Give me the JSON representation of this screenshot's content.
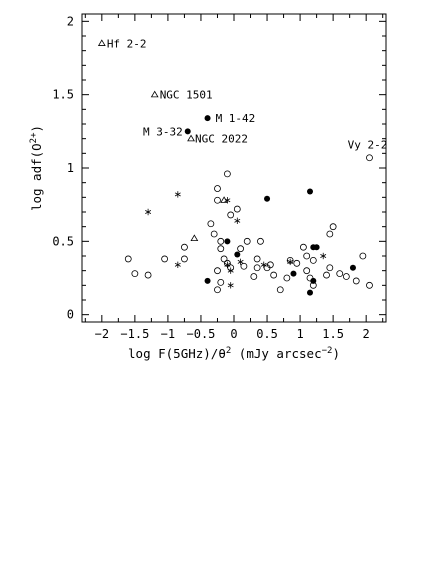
{
  "chart_data": {
    "type": "scatter",
    "xlabel_main": "log F(5GHz)/θ",
    "xlabel_sup": "2",
    "xlabel_tail": " (mJy arcsec",
    "xlabel_tail_sup": "−2",
    "xlabel_close": ")",
    "ylabel_main": "log adf(O",
    "ylabel_sup": "2+",
    "ylabel_close": ")",
    "xlim": [
      -2.3,
      2.3
    ],
    "ylim": [
      -0.05,
      2.05
    ],
    "x_ticks": [
      -2,
      -1.5,
      -1,
      -0.5,
      0,
      0.5,
      1,
      1.5,
      2
    ],
    "x_tick_labels": [
      "−2",
      "−1.5",
      "−1",
      "−0.5",
      "0",
      "0.5",
      "1",
      "1.5",
      "2"
    ],
    "y_ticks": [
      0,
      0.5,
      1,
      1.5,
      2
    ],
    "y_tick_labels": [
      "0",
      "0.5",
      "1",
      "1.5",
      "2"
    ],
    "grid": false,
    "series": [
      {
        "marker": "open-triangle",
        "points": [
          [
            -2.0,
            1.85
          ],
          [
            -1.2,
            1.5
          ],
          [
            -0.65,
            1.2
          ],
          [
            -0.15,
            0.78
          ],
          [
            -0.6,
            0.52
          ]
        ]
      },
      {
        "marker": "filled-circle",
        "points": [
          [
            -0.4,
            1.34
          ],
          [
            -0.7,
            1.25
          ],
          [
            0.5,
            0.79
          ],
          [
            1.15,
            0.84
          ],
          [
            -0.1,
            0.5
          ],
          [
            0.05,
            0.41
          ],
          [
            -0.4,
            0.23
          ],
          [
            1.2,
            0.46
          ],
          [
            1.25,
            0.46
          ],
          [
            0.9,
            0.28
          ],
          [
            1.2,
            0.23
          ],
          [
            1.15,
            0.15
          ],
          [
            1.8,
            0.32
          ]
        ]
      },
      {
        "marker": "open-circle",
        "points": [
          [
            2.05,
            1.07
          ],
          [
            -0.1,
            0.96
          ],
          [
            -0.25,
            0.86
          ],
          [
            -0.25,
            0.78
          ],
          [
            0.05,
            0.72
          ],
          [
            -0.05,
            0.68
          ],
          [
            -0.35,
            0.62
          ],
          [
            -0.3,
            0.55
          ],
          [
            -0.2,
            0.5
          ],
          [
            0.1,
            0.45
          ],
          [
            0.4,
            0.5
          ],
          [
            0.35,
            0.38
          ],
          [
            0.35,
            0.32
          ],
          [
            0.3,
            0.26
          ],
          [
            0.15,
            0.33
          ],
          [
            -0.05,
            0.32
          ],
          [
            -0.1,
            0.35
          ],
          [
            -0.15,
            0.38
          ],
          [
            -0.2,
            0.45
          ],
          [
            0.2,
            0.5
          ],
          [
            -0.25,
            0.3
          ],
          [
            -0.2,
            0.22
          ],
          [
            -0.25,
            0.17
          ],
          [
            0.7,
            0.17
          ],
          [
            0.5,
            0.32
          ],
          [
            0.6,
            0.27
          ],
          [
            0.85,
            0.37
          ],
          [
            0.95,
            0.35
          ],
          [
            1.1,
            0.4
          ],
          [
            1.2,
            0.37
          ],
          [
            1.1,
            0.3
          ],
          [
            1.15,
            0.25
          ],
          [
            1.2,
            0.2
          ],
          [
            1.4,
            0.27
          ],
          [
            1.45,
            0.32
          ],
          [
            1.6,
            0.28
          ],
          [
            1.7,
            0.26
          ],
          [
            1.85,
            0.23
          ],
          [
            1.95,
            0.4
          ],
          [
            2.05,
            0.2
          ],
          [
            1.5,
            0.6
          ],
          [
            1.45,
            0.55
          ],
          [
            1.05,
            0.46
          ],
          [
            -1.05,
            0.38
          ],
          [
            -1.3,
            0.27
          ],
          [
            -1.6,
            0.38
          ],
          [
            -1.5,
            0.28
          ],
          [
            -0.75,
            0.46
          ],
          [
            -0.75,
            0.38
          ],
          [
            0.55,
            0.34
          ],
          [
            0.8,
            0.25
          ]
        ]
      },
      {
        "marker": "asterisk",
        "points": [
          [
            -1.3,
            0.7
          ],
          [
            -0.85,
            0.82
          ],
          [
            -0.1,
            0.78
          ],
          [
            0.05,
            0.64
          ],
          [
            -0.85,
            0.34
          ],
          [
            -0.1,
            0.34
          ],
          [
            -0.05,
            0.3
          ],
          [
            0.1,
            0.36
          ],
          [
            -0.05,
            0.2
          ],
          [
            0.45,
            0.34
          ],
          [
            0.85,
            0.36
          ],
          [
            1.35,
            0.4
          ]
        ]
      }
    ],
    "annotations": [
      {
        "text": "Hf 2-2",
        "x": -2.0,
        "y": 1.85
      },
      {
        "text": "NGC 1501",
        "x": -1.2,
        "y": 1.5
      },
      {
        "text": "M 1-42",
        "x": -0.4,
        "y": 1.34
      },
      {
        "text": "M 3-32",
        "x": -0.7,
        "y": 1.25
      },
      {
        "text": "NGC 2022",
        "x": -0.65,
        "y": 1.2
      },
      {
        "text": "Vy 2-2",
        "x": 2.05,
        "y": 1.07
      }
    ]
  }
}
